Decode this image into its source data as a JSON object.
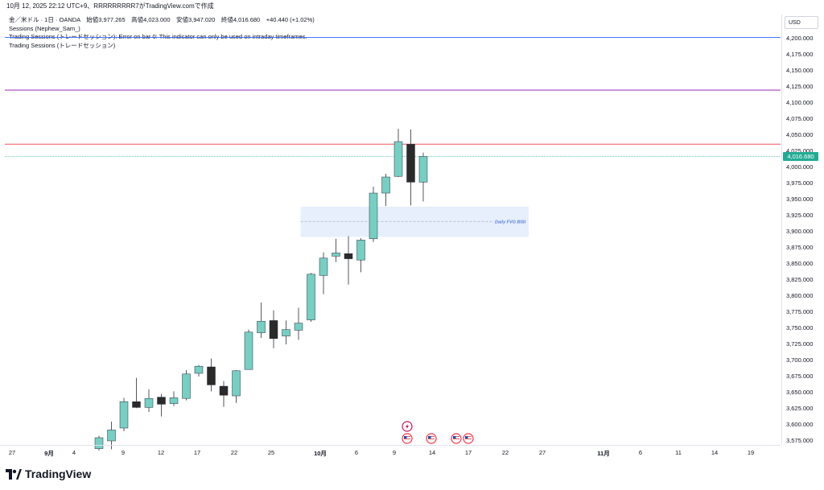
{
  "header": {
    "published": "10月 12, 2025 22:12 UTC+9、RRRRRRRRR7がTradingView.comで作成"
  },
  "legend": {
    "symbol_line": "金／米ドル · 1日 · OANDA　始値3,977.265　高値4,023.000　安値3,947.020　終値4,016.680　+40.440 (+1.02%)",
    "indicator_1": "Sessions (Nephew_Sam_)",
    "indicator_2": "Trading Sessions (トレードセッション): Error on bar 0: This indicator can only be used on intraday timeframes.",
    "indicator_3": "Trading Sessions (トレードセッション)"
  },
  "price_axis": {
    "currency": "USD",
    "ticks": [
      "4,200.000",
      "4,175.000",
      "4,150.000",
      "4,125.000",
      "4,100.000",
      "4,075.000",
      "4,050.000",
      "4,025.000",
      "4,000.000",
      "3,975.000",
      "3,950.000",
      "3,925.000",
      "3,900.000",
      "3,875.000",
      "3,850.000",
      "3,825.000",
      "3,800.000",
      "3,775.000",
      "3,750.000",
      "3,725.000",
      "3,700.000",
      "3,675.000",
      "3,650.000",
      "3,625.000",
      "3,600.000",
      "3,575.000"
    ],
    "current_price": "4,016.680"
  },
  "time_axis": {
    "labels": [
      {
        "text": "27",
        "bold": false
      },
      {
        "text": "9月",
        "bold": true
      },
      {
        "text": "4",
        "bold": false
      },
      {
        "text": "9",
        "bold": false
      },
      {
        "text": "12",
        "bold": false
      },
      {
        "text": "17",
        "bold": false
      },
      {
        "text": "22",
        "bold": false
      },
      {
        "text": "25",
        "bold": false
      },
      {
        "text": "10月",
        "bold": true
      },
      {
        "text": "6",
        "bold": false
      },
      {
        "text": "9",
        "bold": false
      },
      {
        "text": "14",
        "bold": false
      },
      {
        "text": "17",
        "bold": false
      },
      {
        "text": "22",
        "bold": false
      },
      {
        "text": "27",
        "bold": false
      },
      {
        "text": "11月",
        "bold": true
      },
      {
        "text": "6",
        "bold": false
      },
      {
        "text": "11",
        "bold": false
      },
      {
        "text": "14",
        "bold": false
      },
      {
        "text": "19",
        "bold": false
      }
    ]
  },
  "levels": [
    {
      "price": 4202,
      "color": "#2962ff"
    },
    {
      "price": 4120,
      "color": "#9c27b0"
    },
    {
      "price": 4036,
      "color": "#f23645"
    },
    {
      "price": 4016.68,
      "color": "#22ab94"
    }
  ],
  "fvg": {
    "label": "Daily FVG BISI",
    "top": 3939,
    "bottom": 3892,
    "mid": 3916,
    "start_bar": 17,
    "end_bar": 31
  },
  "candles": [
    {
      "o": 3563,
      "h": 3583,
      "l": 3560,
      "c": 3580,
      "up": true
    },
    {
      "o": 3575,
      "h": 3605,
      "l": 3562,
      "c": 3592,
      "up": true
    },
    {
      "o": 3595,
      "h": 3642,
      "l": 3590,
      "c": 3636,
      "up": true
    },
    {
      "o": 3636,
      "h": 3673,
      "l": 3626,
      "c": 3627,
      "up": false
    },
    {
      "o": 3627,
      "h": 3655,
      "l": 3620,
      "c": 3641,
      "up": true
    },
    {
      "o": 3643,
      "h": 3648,
      "l": 3613,
      "c": 3632,
      "up": false
    },
    {
      "o": 3633,
      "h": 3652,
      "l": 3629,
      "c": 3642,
      "up": true
    },
    {
      "o": 3641,
      "h": 3685,
      "l": 3638,
      "c": 3679,
      "up": true
    },
    {
      "o": 3680,
      "h": 3693,
      "l": 3675,
      "c": 3691,
      "up": true
    },
    {
      "o": 3690,
      "h": 3703,
      "l": 3652,
      "c": 3662,
      "up": false
    },
    {
      "o": 3660,
      "h": 3668,
      "l": 3628,
      "c": 3646,
      "up": false
    },
    {
      "o": 3645,
      "h": 3685,
      "l": 3634,
      "c": 3684,
      "up": true
    },
    {
      "o": 3686,
      "h": 3748,
      "l": 3686,
      "c": 3744,
      "up": true
    },
    {
      "o": 3743,
      "h": 3790,
      "l": 3735,
      "c": 3761,
      "up": true
    },
    {
      "o": 3762,
      "h": 3778,
      "l": 3719,
      "c": 3734,
      "up": false
    },
    {
      "o": 3738,
      "h": 3762,
      "l": 3725,
      "c": 3748,
      "up": true
    },
    {
      "o": 3747,
      "h": 3782,
      "l": 3732,
      "c": 3758,
      "up": true
    },
    {
      "o": 3763,
      "h": 3836,
      "l": 3760,
      "c": 3834,
      "up": true
    },
    {
      "o": 3832,
      "h": 3868,
      "l": 3803,
      "c": 3859,
      "up": true
    },
    {
      "o": 3862,
      "h": 3889,
      "l": 3853,
      "c": 3867,
      "up": true
    },
    {
      "o": 3866,
      "h": 3893,
      "l": 3818,
      "c": 3858,
      "up": false
    },
    {
      "o": 3856,
      "h": 3890,
      "l": 3837,
      "c": 3887,
      "up": true
    },
    {
      "o": 3889,
      "h": 3970,
      "l": 3884,
      "c": 3960,
      "up": true
    },
    {
      "o": 3960,
      "h": 3990,
      "l": 3940,
      "c": 3985,
      "up": true
    },
    {
      "o": 3986,
      "h": 4060,
      "l": 3985,
      "c": 4040,
      "up": true
    },
    {
      "o": 4036,
      "h": 4059,
      "l": 3941,
      "c": 3977,
      "up": false
    },
    {
      "o": 3977,
      "h": 4023,
      "l": 3947,
      "c": 4017,
      "up": true
    }
  ],
  "event_icons": [
    "lightning-event-icon",
    "us-flag-icon",
    "us-flag-icon",
    "us-flag-icon",
    "us-flag-icon"
  ],
  "brand": {
    "name": "TradingView"
  },
  "colors": {
    "up": "#76cfc3",
    "down": "#2a2a2a",
    "fvg_fill": "#e3ecfc",
    "fvg_text": "#5b7fd8"
  }
}
